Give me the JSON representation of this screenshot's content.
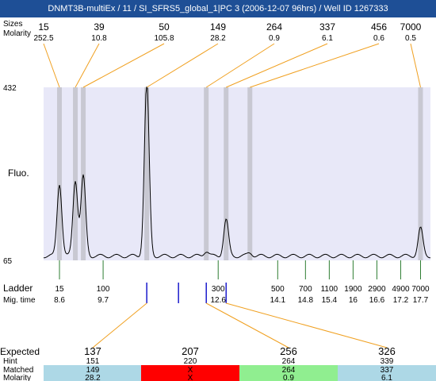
{
  "title": "DNMT3B-multiEx / 11 / SI_SFRS5_global_1|PC 3 (2006-12-07 96hrs) / Well ID 1267333",
  "row_labels": {
    "size": "Sizes",
    "molarity": "Molarity",
    "fluo": "Fluo.",
    "ladder": "Ladder",
    "mig_time": "Mig. time",
    "expected": "Expected",
    "hint": "Hint",
    "matched": "Matched",
    "molarity_bottom": "Molarity"
  },
  "y_axis": {
    "max_label": "432",
    "min_label": "65"
  },
  "colors": {
    "plot_bg": "#e8e8f8",
    "peak_band": "#c8c8d2",
    "trace": "#000000",
    "orange": "#f0a020",
    "ladder_tick": "#2e7d32",
    "blue_marker": "#1a1acc",
    "red_text": "#e02020",
    "cell_blue": "#add8e6",
    "cell_red": "#ff0000",
    "cell_green": "#90ee90"
  },
  "chart_data": {
    "type": "line",
    "y_range": [
      65,
      432
    ],
    "peaks": [
      {
        "size": "15",
        "molarity": "252.5",
        "mig_time": 8.6,
        "height": 0.42
      },
      {
        "size": "39",
        "molarity": "10.8",
        "mig_time": 9.0,
        "height": 0.44
      },
      {
        "size": "50",
        "molarity": "105.8",
        "mig_time": 9.2,
        "height": 0.46
      },
      {
        "size": "149",
        "molarity": "28.2",
        "mig_time": 10.8,
        "height": 1.0
      },
      {
        "size": "264",
        "molarity": "0.9",
        "mig_time": 12.3,
        "height": 0.03
      },
      {
        "size": "337",
        "molarity": "6.1",
        "mig_time": 12.8,
        "height": 0.21
      },
      {
        "size": "456",
        "molarity": "0.6",
        "mig_time": 13.4,
        "height": 0.02
      },
      {
        "size": "7000",
        "molarity": "0.5",
        "mig_time": 17.7,
        "height": 0.16
      }
    ],
    "ladder": [
      {
        "size": "15",
        "mig_time": "8.6"
      },
      {
        "size": "100",
        "mig_time": "9.7"
      },
      {
        "size": "300",
        "mig_time": "12.6"
      },
      {
        "size": "500",
        "mig_time": "14.1"
      },
      {
        "size": "700",
        "mig_time": "14.8"
      },
      {
        "size": "1100",
        "mig_time": "15.4"
      },
      {
        "size": "1900",
        "mig_time": "16"
      },
      {
        "size": "2900",
        "mig_time": "16.6"
      },
      {
        "size": "4900",
        "mig_time": "17.2"
      },
      {
        "size": "7000",
        "mig_time": "17.7"
      }
    ],
    "expected": [
      {
        "expected": "137",
        "hint": "151",
        "matched": "149",
        "molarity": "28.2",
        "status": "matched",
        "mig_time": 10.8,
        "highlight": true
      },
      {
        "expected": "207",
        "hint": "220",
        "matched": "X",
        "molarity": "X",
        "status": "missing",
        "mig_time": 11.6,
        "highlight": false
      },
      {
        "expected": "256",
        "hint": "264",
        "matched": "264",
        "molarity": "0.9",
        "status": "found",
        "mig_time": 12.3,
        "highlight": false
      },
      {
        "expected": "326",
        "hint": "339",
        "matched": "337",
        "molarity": "6.1",
        "status": "matched",
        "mig_time": 12.8,
        "highlight": true
      }
    ]
  }
}
